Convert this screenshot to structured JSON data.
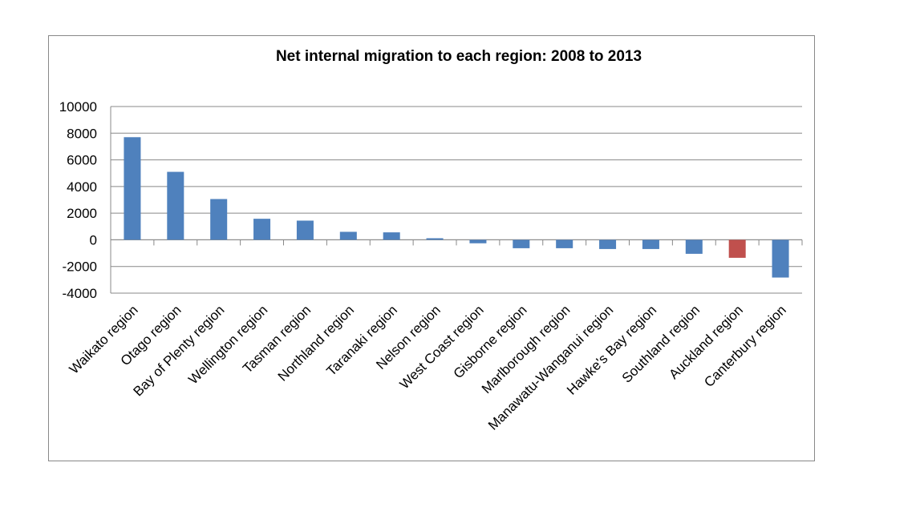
{
  "chart_data": {
    "type": "bar",
    "title": "Net internal migration to each region: 2008 to 2013",
    "xlabel": "",
    "ylabel": "",
    "ylim": [
      -4000,
      10000
    ],
    "yticks": [
      -4000,
      -2000,
      0,
      2000,
      4000,
      6000,
      8000,
      10000
    ],
    "grid": true,
    "legend": "none",
    "categories": [
      "Waikato region",
      "Otago region",
      "Bay of Plenty region",
      "Wellington region",
      "Tasman region",
      "Northland region",
      "Taranaki region",
      "Nelson region",
      "West Coast region",
      "Gisborne region",
      "Marlborough region",
      "Manawatu-Wanganui region",
      "Hawke's Bay region",
      "Southland region",
      "Auckland region",
      "Canterbury region"
    ],
    "values": [
      7700,
      5100,
      3060,
      1580,
      1440,
      600,
      560,
      120,
      -260,
      -630,
      -630,
      -690,
      -690,
      -1050,
      -1350,
      -2830
    ],
    "colors": {
      "default": "#4F81BD",
      "highlight": "#C0504D"
    },
    "highlight_category": "Auckland region"
  }
}
